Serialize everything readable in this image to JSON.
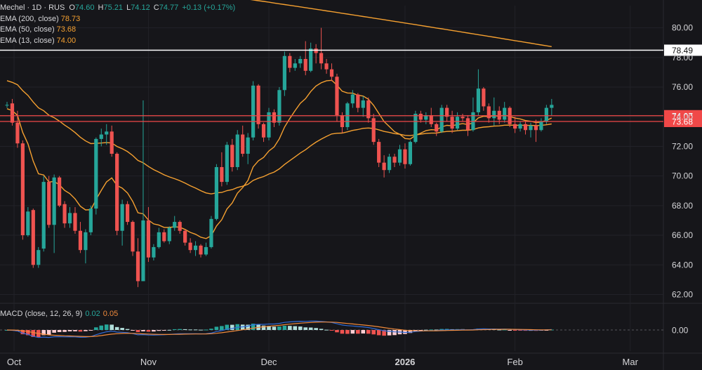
{
  "legend": {
    "symbol": "Mechel · 1D · RUS",
    "o_label": "O",
    "o_value": "74.60",
    "h_label": "H",
    "h_value": "75.21",
    "l_label": "L",
    "l_value": "74.12",
    "c_label": "C",
    "c_value": "74.77",
    "change": "+0.13 (+0.17%)",
    "ema200_label": "EMA (200, close)",
    "ema200_value": "78.73",
    "ema50_label": "EMA (50, close)",
    "ema50_value": "73.68",
    "ema13_label": "EMA (13, close)",
    "ema13_value": "74.00"
  },
  "macd_legend": {
    "label": "MACD (close, 12, 26, 9)",
    "value1": "0.02",
    "value2": "0.05"
  },
  "colors": {
    "background": "#16161a",
    "up": "#26a69a",
    "down": "#ef5350",
    "ema": "#f5a030",
    "level_line": "#f04848",
    "resistance_line": "#ffffff",
    "macd_line": "#2f6bd8",
    "signal_line": "#f08a3c",
    "text": "#d6d6d9"
  },
  "chart_data": {
    "type": "candlestick",
    "y_range": [
      61.5,
      81.5
    ],
    "y_ticks": [
      "80.00",
      "78.00",
      "76.00",
      "74.00",
      "72.00",
      "70.00",
      "68.00",
      "66.00",
      "64.00",
      "62.00"
    ],
    "x_labels": [
      "Oct",
      "Nov",
      "Dec",
      "2026",
      "Feb",
      "Mar"
    ],
    "macd_zero_label": "0.00",
    "level_labels": [
      {
        "value": 78.49,
        "text": "78.49",
        "style": "white"
      },
      {
        "value": 74.07,
        "text": "74.07",
        "style": "red"
      },
      {
        "value": 73.68,
        "text": "73.68",
        "style": "red"
      }
    ],
    "candles": [
      [
        74.8,
        75.0,
        74.6,
        74.8
      ],
      [
        74.9,
        75.2,
        73.4,
        73.6
      ],
      [
        73.6,
        74.4,
        71.9,
        72.2
      ],
      [
        72.2,
        72.4,
        65.7,
        66.0
      ],
      [
        66.0,
        67.9,
        65.9,
        67.6
      ],
      [
        67.7,
        67.8,
        63.8,
        64.0
      ],
      [
        64.0,
        65.2,
        63.8,
        65.0
      ],
      [
        65.1,
        70.0,
        64.9,
        69.6
      ],
      [
        69.6,
        70.0,
        66.5,
        66.7
      ],
      [
        66.7,
        70.1,
        64.8,
        69.9
      ],
      [
        69.9,
        70.0,
        67.9,
        68.0
      ],
      [
        68.1,
        68.3,
        66.5,
        66.8
      ],
      [
        66.8,
        67.9,
        66.5,
        67.5
      ],
      [
        67.5,
        67.9,
        66.1,
        66.3
      ],
      [
        66.3,
        66.9,
        64.8,
        65.0
      ],
      [
        65.0,
        66.4,
        64.1,
        66.2
      ],
      [
        66.2,
        68.0,
        66.0,
        67.8
      ],
      [
        67.8,
        72.6,
        67.4,
        72.5
      ],
      [
        72.5,
        73.2,
        72.0,
        72.8
      ],
      [
        72.8,
        73.5,
        72.1,
        73.0
      ],
      [
        73.0,
        73.4,
        71.3,
        71.5
      ],
      [
        71.5,
        71.6,
        66.0,
        66.3
      ],
      [
        66.3,
        68.4,
        65.3,
        68.1
      ],
      [
        68.1,
        68.3,
        66.7,
        66.9
      ],
      [
        66.9,
        67.0,
        64.6,
        64.9
      ],
      [
        64.9,
        65.8,
        62.5,
        62.9
      ],
      [
        62.9,
        75.1,
        63.0,
        67.0
      ],
      [
        67.0,
        67.9,
        64.2,
        64.5
      ],
      [
        64.5,
        65.4,
        64.3,
        65.2
      ],
      [
        65.2,
        66.5,
        65.1,
        66.2
      ],
      [
        66.2,
        66.4,
        65.5,
        65.6
      ],
      [
        65.6,
        66.6,
        65.4,
        66.5
      ],
      [
        66.5,
        67.3,
        66.3,
        66.9
      ],
      [
        66.9,
        67.0,
        66.1,
        66.3
      ],
      [
        66.3,
        66.4,
        65.3,
        65.5
      ],
      [
        65.5,
        65.8,
        64.8,
        65.0
      ],
      [
        65.0,
        65.6,
        64.6,
        65.3
      ],
      [
        65.3,
        65.4,
        64.5,
        64.7
      ],
      [
        64.7,
        65.5,
        64.6,
        65.2
      ],
      [
        65.2,
        67.3,
        65.1,
        67.1
      ],
      [
        67.1,
        70.8,
        67.0,
        70.6
      ],
      [
        70.6,
        71.6,
        69.3,
        69.6
      ],
      [
        69.6,
        72.3,
        69.4,
        72.1
      ],
      [
        72.1,
        72.5,
        70.3,
        70.6
      ],
      [
        70.6,
        73.1,
        70.4,
        72.8
      ],
      [
        72.8,
        73.4,
        71.3,
        71.5
      ],
      [
        71.5,
        72.9,
        70.8,
        72.6
      ],
      [
        72.6,
        76.4,
        72.4,
        76.1
      ],
      [
        76.1,
        76.2,
        73.2,
        73.5
      ],
      [
        73.5,
        73.6,
        72.3,
        72.6
      ],
      [
        72.6,
        74.6,
        72.4,
        74.3
      ],
      [
        74.3,
        74.5,
        73.3,
        73.6
      ],
      [
        73.6,
        76.0,
        73.4,
        75.8
      ],
      [
        75.8,
        78.4,
        75.4,
        78.1
      ],
      [
        78.1,
        78.3,
        77.0,
        77.3
      ],
      [
        77.3,
        77.9,
        77.1,
        77.6
      ],
      [
        77.6,
        78.1,
        77.3,
        77.9
      ],
      [
        77.9,
        79.1,
        76.8,
        77.1
      ],
      [
        77.1,
        79.0,
        77.0,
        78.6
      ],
      [
        78.6,
        78.9,
        77.6,
        78.3
      ],
      [
        78.3,
        80.0,
        77.2,
        77.6
      ],
      [
        77.6,
        77.9,
        76.9,
        77.2
      ],
      [
        77.2,
        77.6,
        76.4,
        76.7
      ],
      [
        76.7,
        76.9,
        73.7,
        74.1
      ],
      [
        74.1,
        74.3,
        72.9,
        73.3
      ],
      [
        73.3,
        75.0,
        73.1,
        74.9
      ],
      [
        74.9,
        75.8,
        74.6,
        75.5
      ],
      [
        75.5,
        75.6,
        74.3,
        74.6
      ],
      [
        74.6,
        75.4,
        74.0,
        75.1
      ],
      [
        75.1,
        75.3,
        73.6,
        73.9
      ],
      [
        73.9,
        74.2,
        72.1,
        72.3
      ],
      [
        72.3,
        72.5,
        70.6,
        70.9
      ],
      [
        70.9,
        71.4,
        69.9,
        70.4
      ],
      [
        70.4,
        71.5,
        70.2,
        71.3
      ],
      [
        71.3,
        71.5,
        70.6,
        70.9
      ],
      [
        70.9,
        72.1,
        70.7,
        71.8
      ],
      [
        71.8,
        72.2,
        70.5,
        70.8
      ],
      [
        70.8,
        72.4,
        70.7,
        72.3
      ],
      [
        72.3,
        74.4,
        72.2,
        74.2
      ],
      [
        74.2,
        74.4,
        73.6,
        73.8
      ],
      [
        73.8,
        74.3,
        73.5,
        74.1
      ],
      [
        74.1,
        74.6,
        73.3,
        73.5
      ],
      [
        73.5,
        73.6,
        72.7,
        73.0
      ],
      [
        73.0,
        74.8,
        72.9,
        74.6
      ],
      [
        74.6,
        74.8,
        73.7,
        74.0
      ],
      [
        74.0,
        74.4,
        72.9,
        73.2
      ],
      [
        73.2,
        74.3,
        73.1,
        74.0
      ],
      [
        74.0,
        74.2,
        73.7,
        73.9
      ],
      [
        73.9,
        74.1,
        72.7,
        73.1
      ],
      [
        73.1,
        75.3,
        73.0,
        74.3
      ],
      [
        74.3,
        77.2,
        74.1,
        75.9
      ],
      [
        75.9,
        76.0,
        74.4,
        74.7
      ],
      [
        74.7,
        74.9,
        73.6,
        73.9
      ],
      [
        73.9,
        75.3,
        73.4,
        74.4
      ],
      [
        74.4,
        74.7,
        73.5,
        73.8
      ],
      [
        73.8,
        75.0,
        73.6,
        74.6
      ],
      [
        74.6,
        74.7,
        73.3,
        73.5
      ],
      [
        73.5,
        74.0,
        72.9,
        73.2
      ],
      [
        73.2,
        73.7,
        73.0,
        73.5
      ],
      [
        73.5,
        73.7,
        72.8,
        73.1
      ],
      [
        73.1,
        73.6,
        72.6,
        73.4
      ],
      [
        73.4,
        73.8,
        72.3,
        73.1
      ],
      [
        73.1,
        73.9,
        73.0,
        73.7
      ],
      [
        73.7,
        74.8,
        73.5,
        74.6
      ],
      [
        74.6,
        75.2,
        74.1,
        74.8
      ]
    ]
  }
}
